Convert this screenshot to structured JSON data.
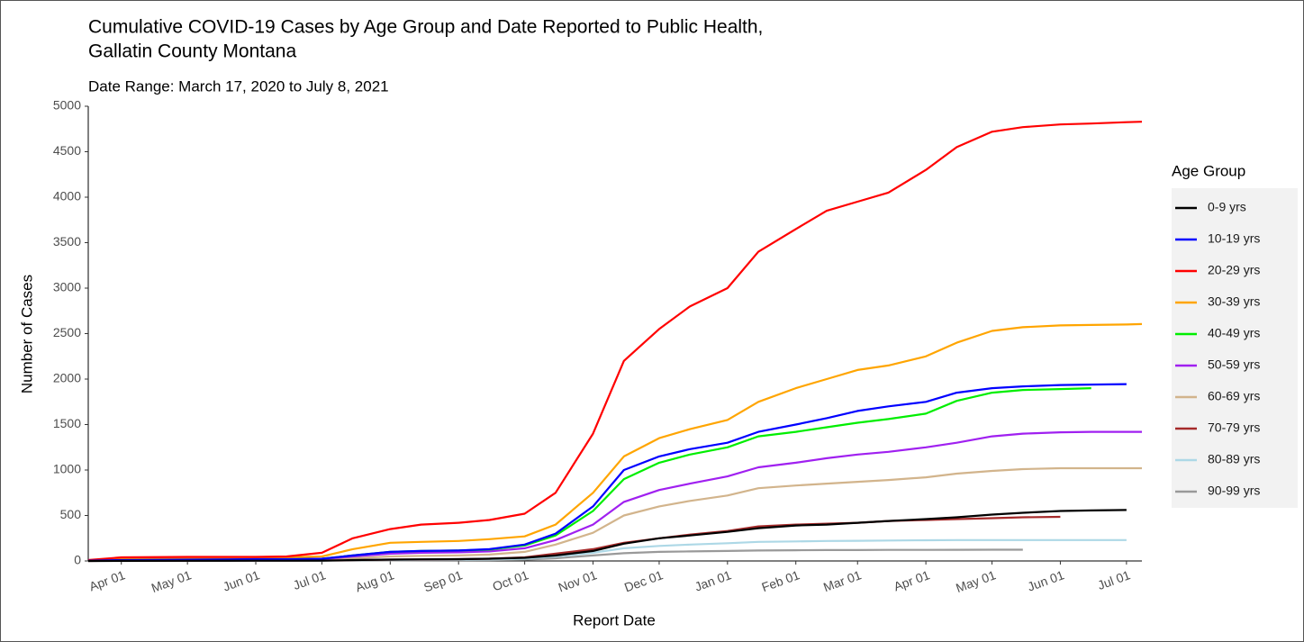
{
  "chart_data": {
    "type": "line",
    "title": "Cumulative COVID-19 Cases by Age Group and Date Reported to Public Health,",
    "title_line2": "Gallatin County Montana",
    "subtitle": "Date Range: March 17, 2020 to July 8, 2021",
    "x_label": "Report Date",
    "y_label": "Number of Cases",
    "legend_title": "Age Group",
    "legend_position": "right",
    "grid": false,
    "x": [
      "2020-03-17",
      "2020-04-01",
      "2020-05-01",
      "2020-06-01",
      "2020-06-15",
      "2020-07-01",
      "2020-07-15",
      "2020-08-01",
      "2020-08-15",
      "2020-09-01",
      "2020-09-15",
      "2020-10-01",
      "2020-10-15",
      "2020-11-01",
      "2020-11-15",
      "2020-12-01",
      "2020-12-15",
      "2021-01-01",
      "2021-01-15",
      "2021-02-01",
      "2021-02-15",
      "2021-03-01",
      "2021-03-15",
      "2021-04-01",
      "2021-04-15",
      "2021-05-01",
      "2021-05-15",
      "2021-06-01",
      "2021-06-15",
      "2021-07-01",
      "2021-07-08"
    ],
    "xlim": [
      "2020-03-17",
      "2021-07-08"
    ],
    "xticks": [
      {
        "value": "2020-04-01",
        "label": "Apr 01"
      },
      {
        "value": "2020-05-01",
        "label": "May 01"
      },
      {
        "value": "2020-06-01",
        "label": "Jun 01"
      },
      {
        "value": "2020-07-01",
        "label": "Jul 01"
      },
      {
        "value": "2020-08-01",
        "label": "Aug 01"
      },
      {
        "value": "2020-09-01",
        "label": "Sep 01"
      },
      {
        "value": "2020-10-01",
        "label": "Oct 01"
      },
      {
        "value": "2020-11-01",
        "label": "Nov 01"
      },
      {
        "value": "2020-12-01",
        "label": "Dec 01"
      },
      {
        "value": "2021-01-01",
        "label": "Jan 01"
      },
      {
        "value": "2021-02-01",
        "label": "Feb 01"
      },
      {
        "value": "2021-03-01",
        "label": "Mar 01"
      },
      {
        "value": "2021-04-01",
        "label": "Apr 01"
      },
      {
        "value": "2021-05-01",
        "label": "May 01"
      },
      {
        "value": "2021-06-01",
        "label": "Jun 01"
      },
      {
        "value": "2021-07-01",
        "label": "Jul 01"
      }
    ],
    "ylim": [
      0,
      5000
    ],
    "yticks": [
      0,
      500,
      1000,
      1500,
      2000,
      2500,
      3000,
      3500,
      4000,
      4500,
      5000
    ],
    "series": [
      {
        "name": "0-9 yrs",
        "color": "#000000",
        "values": [
          0,
          1,
          2,
          3,
          3,
          4,
          10,
          15,
          18,
          20,
          25,
          35,
          60,
          110,
          190,
          250,
          280,
          320,
          360,
          390,
          400,
          420,
          440,
          460,
          480,
          510,
          530,
          550,
          555,
          560,
          null
        ]
      },
      {
        "name": "10-19 yrs",
        "color": "#0000ff",
        "values": [
          3,
          10,
          15,
          20,
          20,
          25,
          60,
          100,
          110,
          115,
          130,
          180,
          300,
          600,
          1000,
          1150,
          1230,
          1300,
          1420,
          1500,
          1570,
          1650,
          1700,
          1750,
          1850,
          1900,
          1920,
          1935,
          1940,
          1945,
          null
        ]
      },
      {
        "name": "20-29 yrs",
        "color": "#ff0000",
        "values": [
          10,
          40,
          45,
          45,
          50,
          90,
          250,
          350,
          400,
          420,
          450,
          520,
          750,
          1400,
          2200,
          2550,
          2800,
          3000,
          3400,
          3650,
          3850,
          3950,
          4050,
          4300,
          4550,
          4720,
          4770,
          4800,
          4810,
          4825,
          4830
        ]
      },
      {
        "name": "30-39 yrs",
        "color": "#ffa500",
        "values": [
          5,
          20,
          30,
          35,
          40,
          50,
          130,
          200,
          210,
          220,
          240,
          270,
          400,
          750,
          1150,
          1350,
          1450,
          1550,
          1750,
          1900,
          2000,
          2100,
          2150,
          2250,
          2400,
          2530,
          2570,
          2590,
          2595,
          2600,
          2605
        ]
      },
      {
        "name": "40-49 yrs",
        "color": "#00ee00",
        "values": [
          3,
          10,
          15,
          20,
          20,
          25,
          60,
          100,
          110,
          115,
          125,
          170,
          280,
          550,
          900,
          1080,
          1170,
          1250,
          1370,
          1420,
          1470,
          1520,
          1560,
          1620,
          1760,
          1850,
          1880,
          1890,
          1900,
          null,
          null
        ]
      },
      {
        "name": "50-59 yrs",
        "color": "#a020f0",
        "values": [
          2,
          8,
          12,
          15,
          15,
          20,
          50,
          80,
          90,
          95,
          105,
          140,
          230,
          400,
          650,
          780,
          850,
          930,
          1030,
          1080,
          1130,
          1170,
          1200,
          1250,
          1300,
          1370,
          1400,
          1415,
          1420,
          1420,
          1420
        ]
      },
      {
        "name": "60-69 yrs",
        "color": "#d2b48c",
        "values": [
          2,
          5,
          8,
          10,
          10,
          12,
          30,
          50,
          55,
          60,
          70,
          100,
          180,
          310,
          500,
          600,
          660,
          720,
          800,
          830,
          850,
          870,
          890,
          920,
          960,
          990,
          1010,
          1020,
          1020,
          1020,
          1020
        ]
      },
      {
        "name": "70-79 yrs",
        "color": "#a52a2a",
        "values": [
          0,
          2,
          4,
          5,
          5,
          6,
          10,
          15,
          17,
          20,
          25,
          40,
          80,
          130,
          200,
          250,
          290,
          330,
          380,
          400,
          410,
          420,
          440,
          450,
          460,
          470,
          480,
          485,
          null,
          null,
          null
        ]
      },
      {
        "name": "80-89 yrs",
        "color": "#add8e6",
        "values": [
          0,
          1,
          2,
          3,
          3,
          5,
          8,
          12,
          14,
          15,
          17,
          25,
          50,
          90,
          140,
          165,
          180,
          195,
          210,
          215,
          220,
          222,
          225,
          228,
          230,
          230,
          230,
          230,
          230,
          230,
          null
        ]
      },
      {
        "name": "90-99 yrs",
        "color": "#999999",
        "values": [
          0,
          0,
          1,
          1,
          1,
          2,
          4,
          6,
          7,
          8,
          10,
          15,
          30,
          60,
          85,
          100,
          105,
          110,
          115,
          118,
          120,
          120,
          122,
          122,
          123,
          124,
          124,
          null,
          null,
          null,
          null
        ]
      }
    ]
  }
}
